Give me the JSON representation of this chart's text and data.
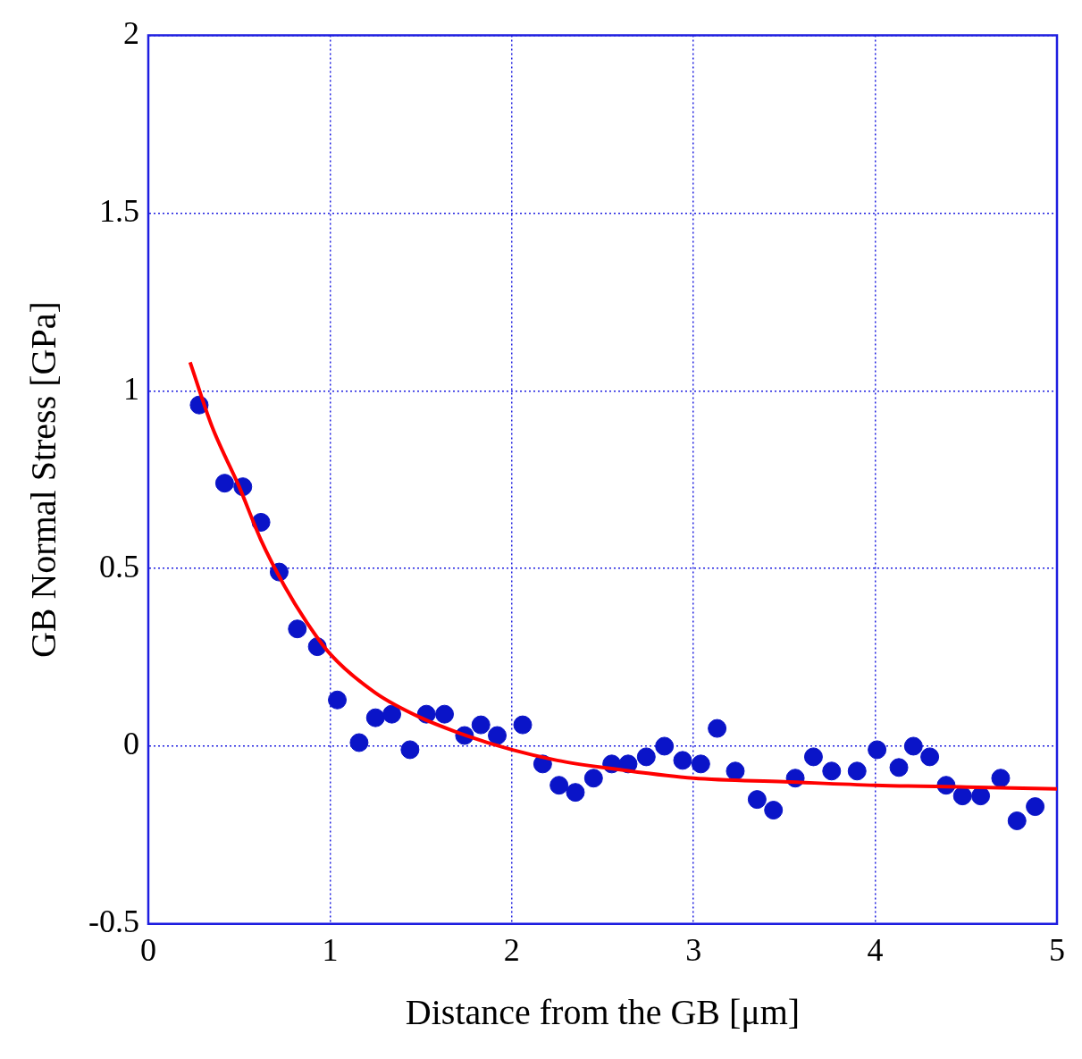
{
  "chart_data": {
    "type": "scatter",
    "xlabel": "Distance from the GB [μm]",
    "ylabel": "GB Normal Stress [GPa]",
    "xlim": [
      0,
      5
    ],
    "ylim": [
      -0.5,
      2
    ],
    "xticks": [
      0,
      1,
      2,
      3,
      4,
      5
    ],
    "yticks": [
      -0.5,
      0,
      0.5,
      1,
      1.5,
      2
    ],
    "grid": true,
    "legend": false,
    "marker": "circle",
    "series": [
      {
        "color": "#0a14c8",
        "x": [
          0.28,
          0.42,
          0.52,
          0.62,
          0.72,
          0.82,
          0.93,
          1.04,
          1.16,
          1.25,
          1.34,
          1.44,
          1.53,
          1.63,
          1.74,
          1.83,
          1.92,
          2.06,
          2.17,
          2.26,
          2.35,
          2.45,
          2.55,
          2.64,
          2.74,
          2.84,
          2.94,
          3.04,
          3.13,
          3.23,
          3.35,
          3.44,
          3.56,
          3.66,
          3.76,
          3.9,
          4.01,
          4.13,
          4.21,
          4.3,
          4.39,
          4.48,
          4.58,
          4.69,
          4.78,
          4.88
        ],
        "values": [
          0.96,
          0.74,
          0.73,
          0.63,
          0.49,
          0.33,
          0.28,
          0.13,
          0.01,
          0.08,
          0.09,
          -0.01,
          0.09,
          0.09,
          0.03,
          0.06,
          0.03,
          0.06,
          -0.05,
          -0.11,
          -0.13,
          -0.09,
          -0.05,
          -0.05,
          -0.03,
          0.0,
          -0.04,
          -0.05,
          0.05,
          -0.07,
          -0.15,
          -0.18,
          -0.09,
          -0.03,
          -0.07,
          -0.07,
          -0.01,
          -0.06,
          0.0,
          -0.03,
          -0.11,
          -0.14,
          -0.14,
          -0.09,
          -0.21,
          -0.17
        ]
      },
      {
        "type": "line",
        "color": "#ff0000",
        "line_style": "solid",
        "marker": "none",
        "x": [
          0.23,
          0.35,
          0.5,
          0.62,
          0.75,
          0.87,
          1.0,
          1.25,
          1.5,
          1.75,
          2.0,
          2.25,
          2.5,
          3.0,
          3.5,
          4.0,
          4.5,
          5.0
        ],
        "values": [
          1.08,
          0.9,
          0.73,
          0.58,
          0.45,
          0.35,
          0.26,
          0.15,
          0.08,
          0.03,
          -0.01,
          -0.04,
          -0.06,
          -0.09,
          -0.1,
          -0.11,
          -0.115,
          -0.12
        ]
      }
    ]
  }
}
